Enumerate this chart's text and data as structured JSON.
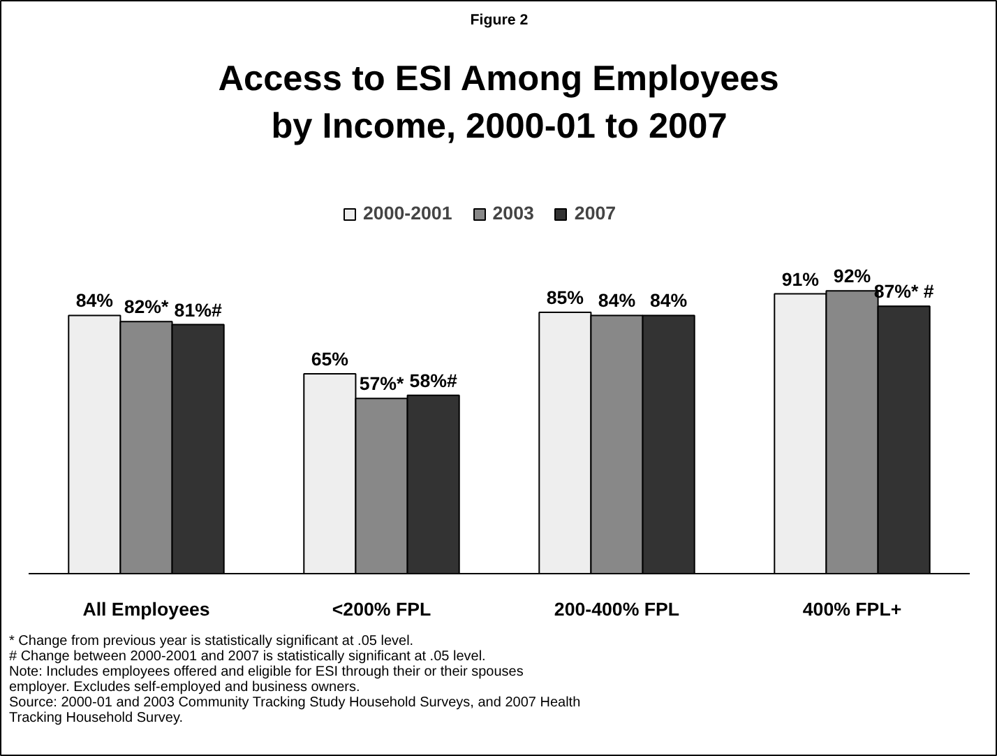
{
  "chart_data": {
    "type": "bar",
    "subtitle": "Figure 2",
    "title": "Access to ESI Among Employees\nby Income, 2000-01 to 2007",
    "categories": [
      "All Employees",
      "<200% FPL",
      "200-400% FPL",
      "400% FPL+"
    ],
    "series": [
      {
        "name": "2000-2001",
        "color": "#eeeeee",
        "values": [
          84,
          65,
          85,
          91
        ],
        "value_labels": [
          "84%",
          "65%",
          "85%",
          "91%"
        ]
      },
      {
        "name": "2003",
        "color": "#888888",
        "values": [
          82,
          57,
          84,
          92
        ],
        "value_labels": [
          "82%*",
          "57%*",
          "84%",
          "92%"
        ]
      },
      {
        "name": "2007",
        "color": "#333333",
        "values": [
          81,
          58,
          84,
          87
        ],
        "value_labels": [
          "81%#",
          "58%#",
          "84%",
          "87%* #"
        ]
      }
    ],
    "legend": "top",
    "annotations": [
      "* Change from previous year is statistically significant at .05 level.",
      "# Change between 2000-2001 and 2007 is statistically significant at .05 level.",
      "Note: Includes employees offered and eligible for ESI through their or their spouses employer. Excludes self-employed and business owners.",
      "Source: 2000-01 and 2003 Community Tracking Study Household Surveys, and 2007 Health Tracking Household Survey."
    ]
  }
}
